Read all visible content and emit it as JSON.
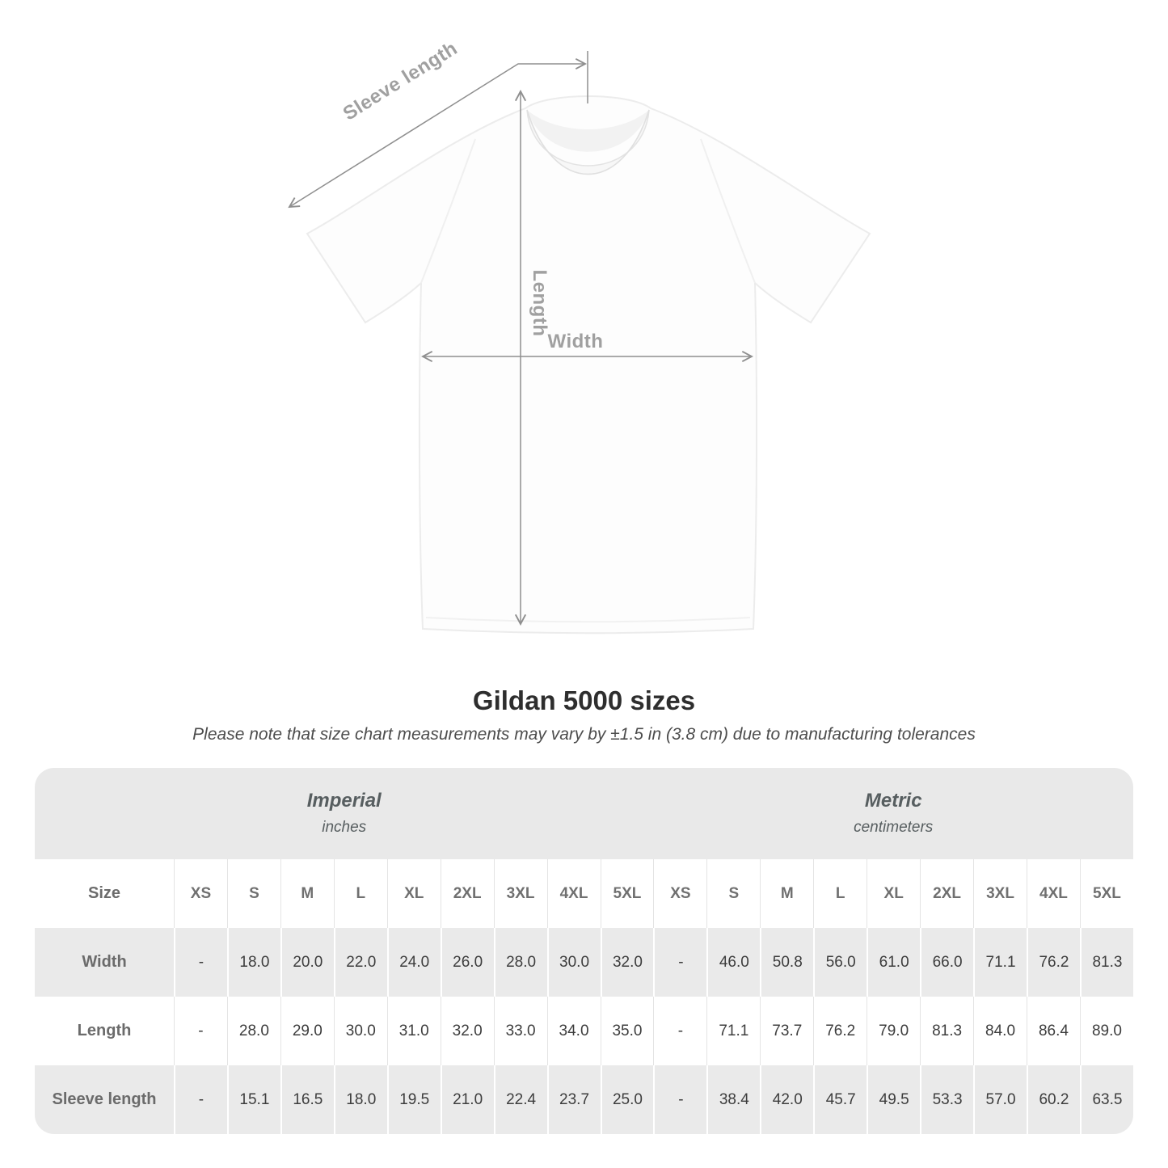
{
  "diagram": {
    "labels": {
      "sleeve_length": "Sleeve length",
      "length": "Length",
      "width": "Width"
    },
    "arrow_color": "#8f8f8f",
    "label_color": "#a0a0a0"
  },
  "title": "Gildan 5000 sizes",
  "note": "Please note that size chart measurements may vary by ±1.5 in (3.8 cm) due to manufacturing tolerances",
  "table": {
    "groups": [
      {
        "name": "Imperial",
        "unit": "inches"
      },
      {
        "name": "Metric",
        "unit": "centimeters"
      }
    ],
    "size_label": "Size",
    "sizes": [
      "XS",
      "S",
      "M",
      "L",
      "XL",
      "2XL",
      "3XL",
      "4XL",
      "5XL"
    ],
    "rows": [
      {
        "label": "Width",
        "imperial": [
          "-",
          "18.0",
          "20.0",
          "22.0",
          "24.0",
          "26.0",
          "28.0",
          "30.0",
          "32.0"
        ],
        "metric": [
          "-",
          "46.0",
          "50.8",
          "56.0",
          "61.0",
          "66.0",
          "71.1",
          "76.2",
          "81.3"
        ]
      },
      {
        "label": "Length",
        "imperial": [
          "-",
          "28.0",
          "29.0",
          "30.0",
          "31.0",
          "32.0",
          "33.0",
          "34.0",
          "35.0"
        ],
        "metric": [
          "-",
          "71.1",
          "73.7",
          "76.2",
          "79.0",
          "81.3",
          "84.0",
          "86.4",
          "89.0"
        ]
      },
      {
        "label": "Sleeve length",
        "imperial": [
          "-",
          "15.1",
          "16.5",
          "18.0",
          "19.5",
          "21.0",
          "22.4",
          "23.7",
          "25.0"
        ],
        "metric": [
          "-",
          "38.4",
          "42.0",
          "45.7",
          "49.5",
          "53.3",
          "57.0",
          "60.2",
          "63.5"
        ]
      }
    ]
  }
}
